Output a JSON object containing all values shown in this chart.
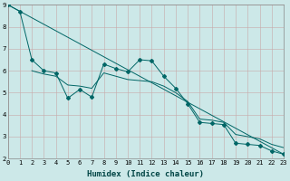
{
  "xlabel": "Humidex (Indice chaleur)",
  "bg_color": "#cce8e8",
  "grid_color": "#c8a8a8",
  "line_color": "#006666",
  "x_min": 0,
  "x_max": 23,
  "y_min": 2,
  "y_max": 9,
  "line1_x": [
    0,
    1,
    2,
    3,
    4,
    5,
    6,
    7,
    8,
    9,
    10,
    11,
    12,
    13,
    14,
    15,
    16,
    17,
    18,
    19,
    20,
    21,
    22,
    23
  ],
  "line1_y": [
    9.0,
    8.7,
    6.5,
    6.0,
    5.9,
    4.75,
    5.15,
    4.8,
    6.3,
    6.1,
    5.95,
    6.5,
    6.45,
    5.75,
    5.2,
    4.5,
    3.65,
    3.6,
    3.55,
    2.7,
    2.65,
    2.6,
    2.35,
    2.2
  ],
  "line2_x": [
    0,
    23
  ],
  "line2_y": [
    9.0,
    2.2
  ],
  "line3_x": [
    2,
    3,
    4,
    5,
    6,
    7,
    8,
    9,
    10,
    11,
    12,
    13,
    14,
    15,
    16,
    17,
    18,
    19,
    20,
    21,
    22,
    23
  ],
  "line3_y": [
    6.0,
    5.85,
    5.75,
    5.35,
    5.3,
    5.2,
    5.9,
    5.75,
    5.6,
    5.55,
    5.5,
    5.3,
    5.0,
    4.6,
    3.8,
    3.75,
    3.65,
    3.1,
    3.0,
    2.9,
    2.65,
    2.5
  ],
  "ytick_values": [
    2,
    3,
    4,
    5,
    6,
    7,
    8,
    9
  ],
  "xtick_values": [
    0,
    1,
    2,
    3,
    4,
    5,
    6,
    7,
    8,
    9,
    10,
    11,
    12,
    13,
    14,
    15,
    16,
    17,
    18,
    19,
    20,
    21,
    22,
    23
  ],
  "marker": "D",
  "marker_size": 2.0,
  "line_width": 0.7,
  "font_size": 6.5
}
